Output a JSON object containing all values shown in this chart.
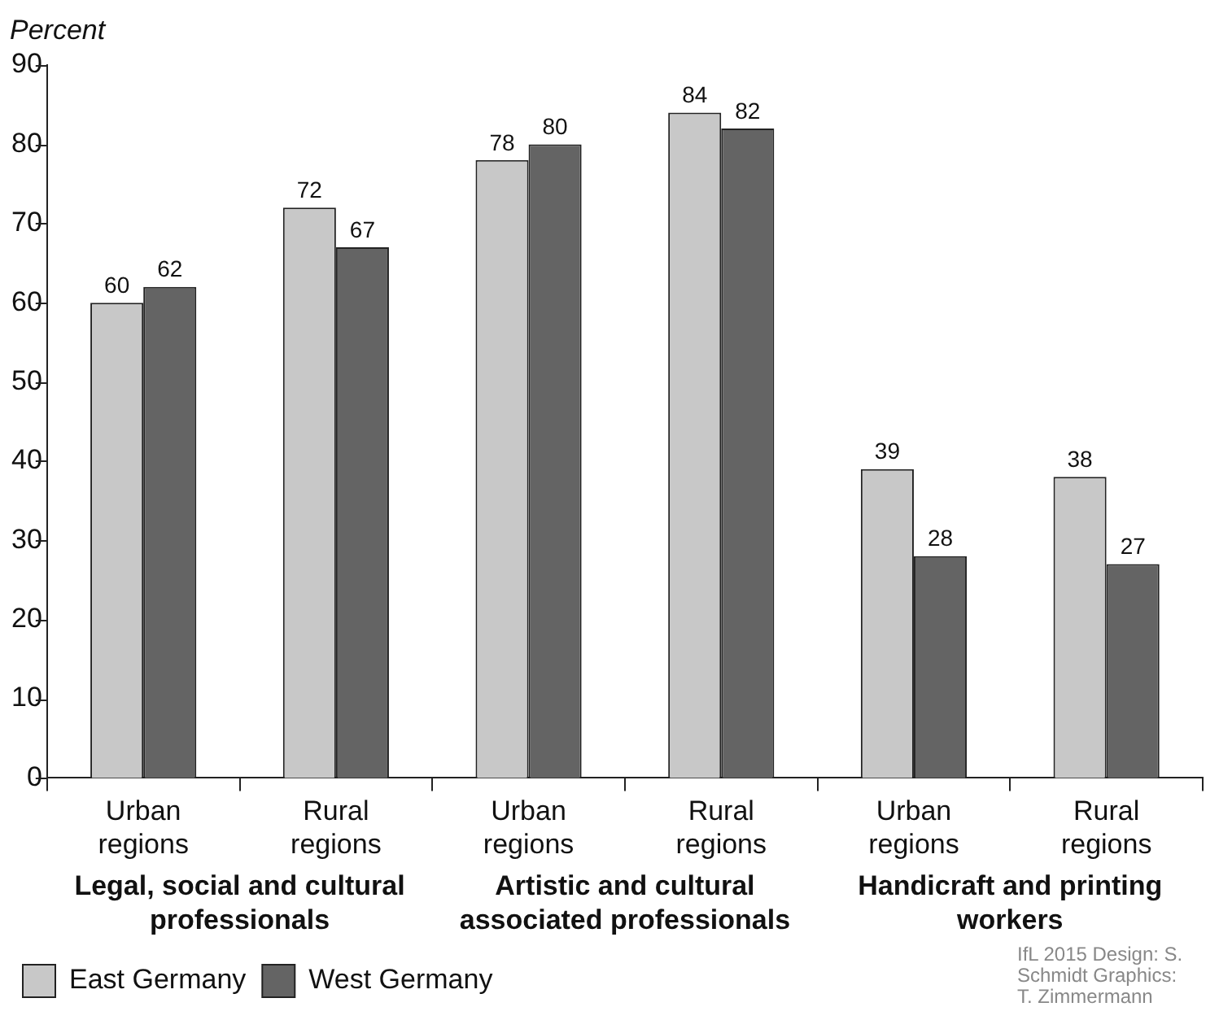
{
  "chart_data": {
    "type": "bar",
    "ylabel": "Percent",
    "categories": [
      "Urban regions",
      "Rural regions",
      "Urban regions",
      "Rural regions",
      "Urban regions",
      "Rural regions"
    ],
    "series": [
      {
        "name": "East Germany",
        "color": "#c8c8c8",
        "values": [
          60,
          72,
          78,
          84,
          39,
          38
        ]
      },
      {
        "name": "West Germany",
        "color": "#646464",
        "values": [
          62,
          67,
          80,
          82,
          28,
          27
        ]
      }
    ],
    "ylim": [
      0,
      90
    ],
    "yticks": [
      0,
      10,
      20,
      30,
      40,
      50,
      60,
      70,
      80,
      90
    ],
    "grid": false,
    "legend": "bottom left",
    "data_labels": true,
    "annotations": [
      "Legal, social and cultural professionals",
      "Artistic and cultural associated professionals",
      "Handicraft and printing workers",
      "IfL 2015 Design: S. Schmidt Graphics: T. Zimmermann"
    ]
  }
}
